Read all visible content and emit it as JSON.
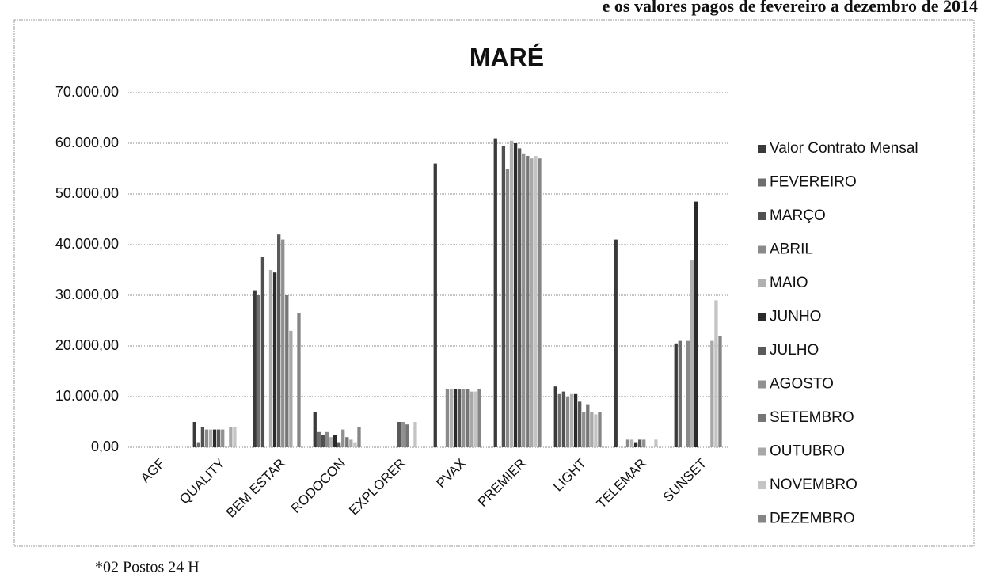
{
  "header": "e os valores pagos de fevereiro a dezembro de 2014",
  "footer": "*02 Postos 24 H",
  "chart_data": {
    "type": "bar",
    "title": "MARÉ",
    "categories": [
      "AGF",
      "QUALITY",
      "BEM ESTAR",
      "RODOCON",
      "EXPLORER",
      "PVAX",
      "PREMIER",
      "LIGHT",
      "TELEMAR",
      "SUNSET"
    ],
    "series": [
      {
        "name": "Valor Contrato Mensal",
        "color": "#3a3a3a",
        "values": [
          0,
          5000,
          31000,
          7000,
          0,
          56000,
          61000,
          12000,
          41000,
          20500
        ]
      },
      {
        "name": "FEVEREIRO",
        "color": "#6e6e6e",
        "values": [
          0,
          1000,
          30000,
          3000,
          0,
          0,
          0,
          10500,
          0,
          21000
        ]
      },
      {
        "name": "MARÇO",
        "color": "#505050",
        "values": [
          0,
          4000,
          37500,
          2500,
          0,
          0,
          59500,
          11000,
          0,
          0
        ]
      },
      {
        "name": "ABRIL",
        "color": "#8a8a8a",
        "values": [
          0,
          3500,
          0,
          3000,
          0,
          11500,
          55000,
          10000,
          1500,
          21000
        ]
      },
      {
        "name": "MAIO",
        "color": "#b0b0b0",
        "values": [
          0,
          3500,
          35000,
          2000,
          0,
          11500,
          60500,
          10500,
          1500,
          37000
        ]
      },
      {
        "name": "JUNHO",
        "color": "#2a2a2a",
        "values": [
          0,
          3500,
          34500,
          2500,
          0,
          11500,
          60000,
          10500,
          1000,
          48500
        ]
      },
      {
        "name": "JULHO",
        "color": "#5a5a5a",
        "values": [
          0,
          3500,
          42000,
          1000,
          5000,
          11500,
          59000,
          9000,
          1500,
          0
        ]
      },
      {
        "name": "AGOSTO",
        "color": "#909090",
        "values": [
          0,
          3500,
          41000,
          3500,
          5000,
          11500,
          58000,
          7000,
          1500,
          0
        ]
      },
      {
        "name": "SETEMBRO",
        "color": "#767676",
        "values": [
          0,
          0,
          30000,
          2000,
          4500,
          11500,
          57500,
          8500,
          0,
          0
        ]
      },
      {
        "name": "OUTUBRO",
        "color": "#a8a8a8",
        "values": [
          0,
          4000,
          23000,
          1500,
          0,
          11000,
          57000,
          7000,
          0,
          21000
        ]
      },
      {
        "name": "NOVEMBRO",
        "color": "#c4c4c4",
        "values": [
          0,
          4000,
          0,
          1000,
          5000,
          11000,
          57500,
          6500,
          1500,
          29000
        ]
      },
      {
        "name": "DEZEMBRO",
        "color": "#858585",
        "values": [
          0,
          0,
          26500,
          4000,
          0,
          11500,
          57000,
          7000,
          0,
          22000
        ]
      }
    ],
    "ylim": [
      0,
      70000
    ],
    "yticks": [
      {
        "value": 0,
        "label": "0,00"
      },
      {
        "value": 10000,
        "label": "10.000,00"
      },
      {
        "value": 20000,
        "label": "20.000,00"
      },
      {
        "value": 30000,
        "label": "30.000,00"
      },
      {
        "value": 40000,
        "label": "40.000,00"
      },
      {
        "value": 50000,
        "label": "50.000,00"
      },
      {
        "value": 60000,
        "label": "60.000,00"
      },
      {
        "value": 70000,
        "label": "70.000,00"
      }
    ],
    "grid": true
  }
}
